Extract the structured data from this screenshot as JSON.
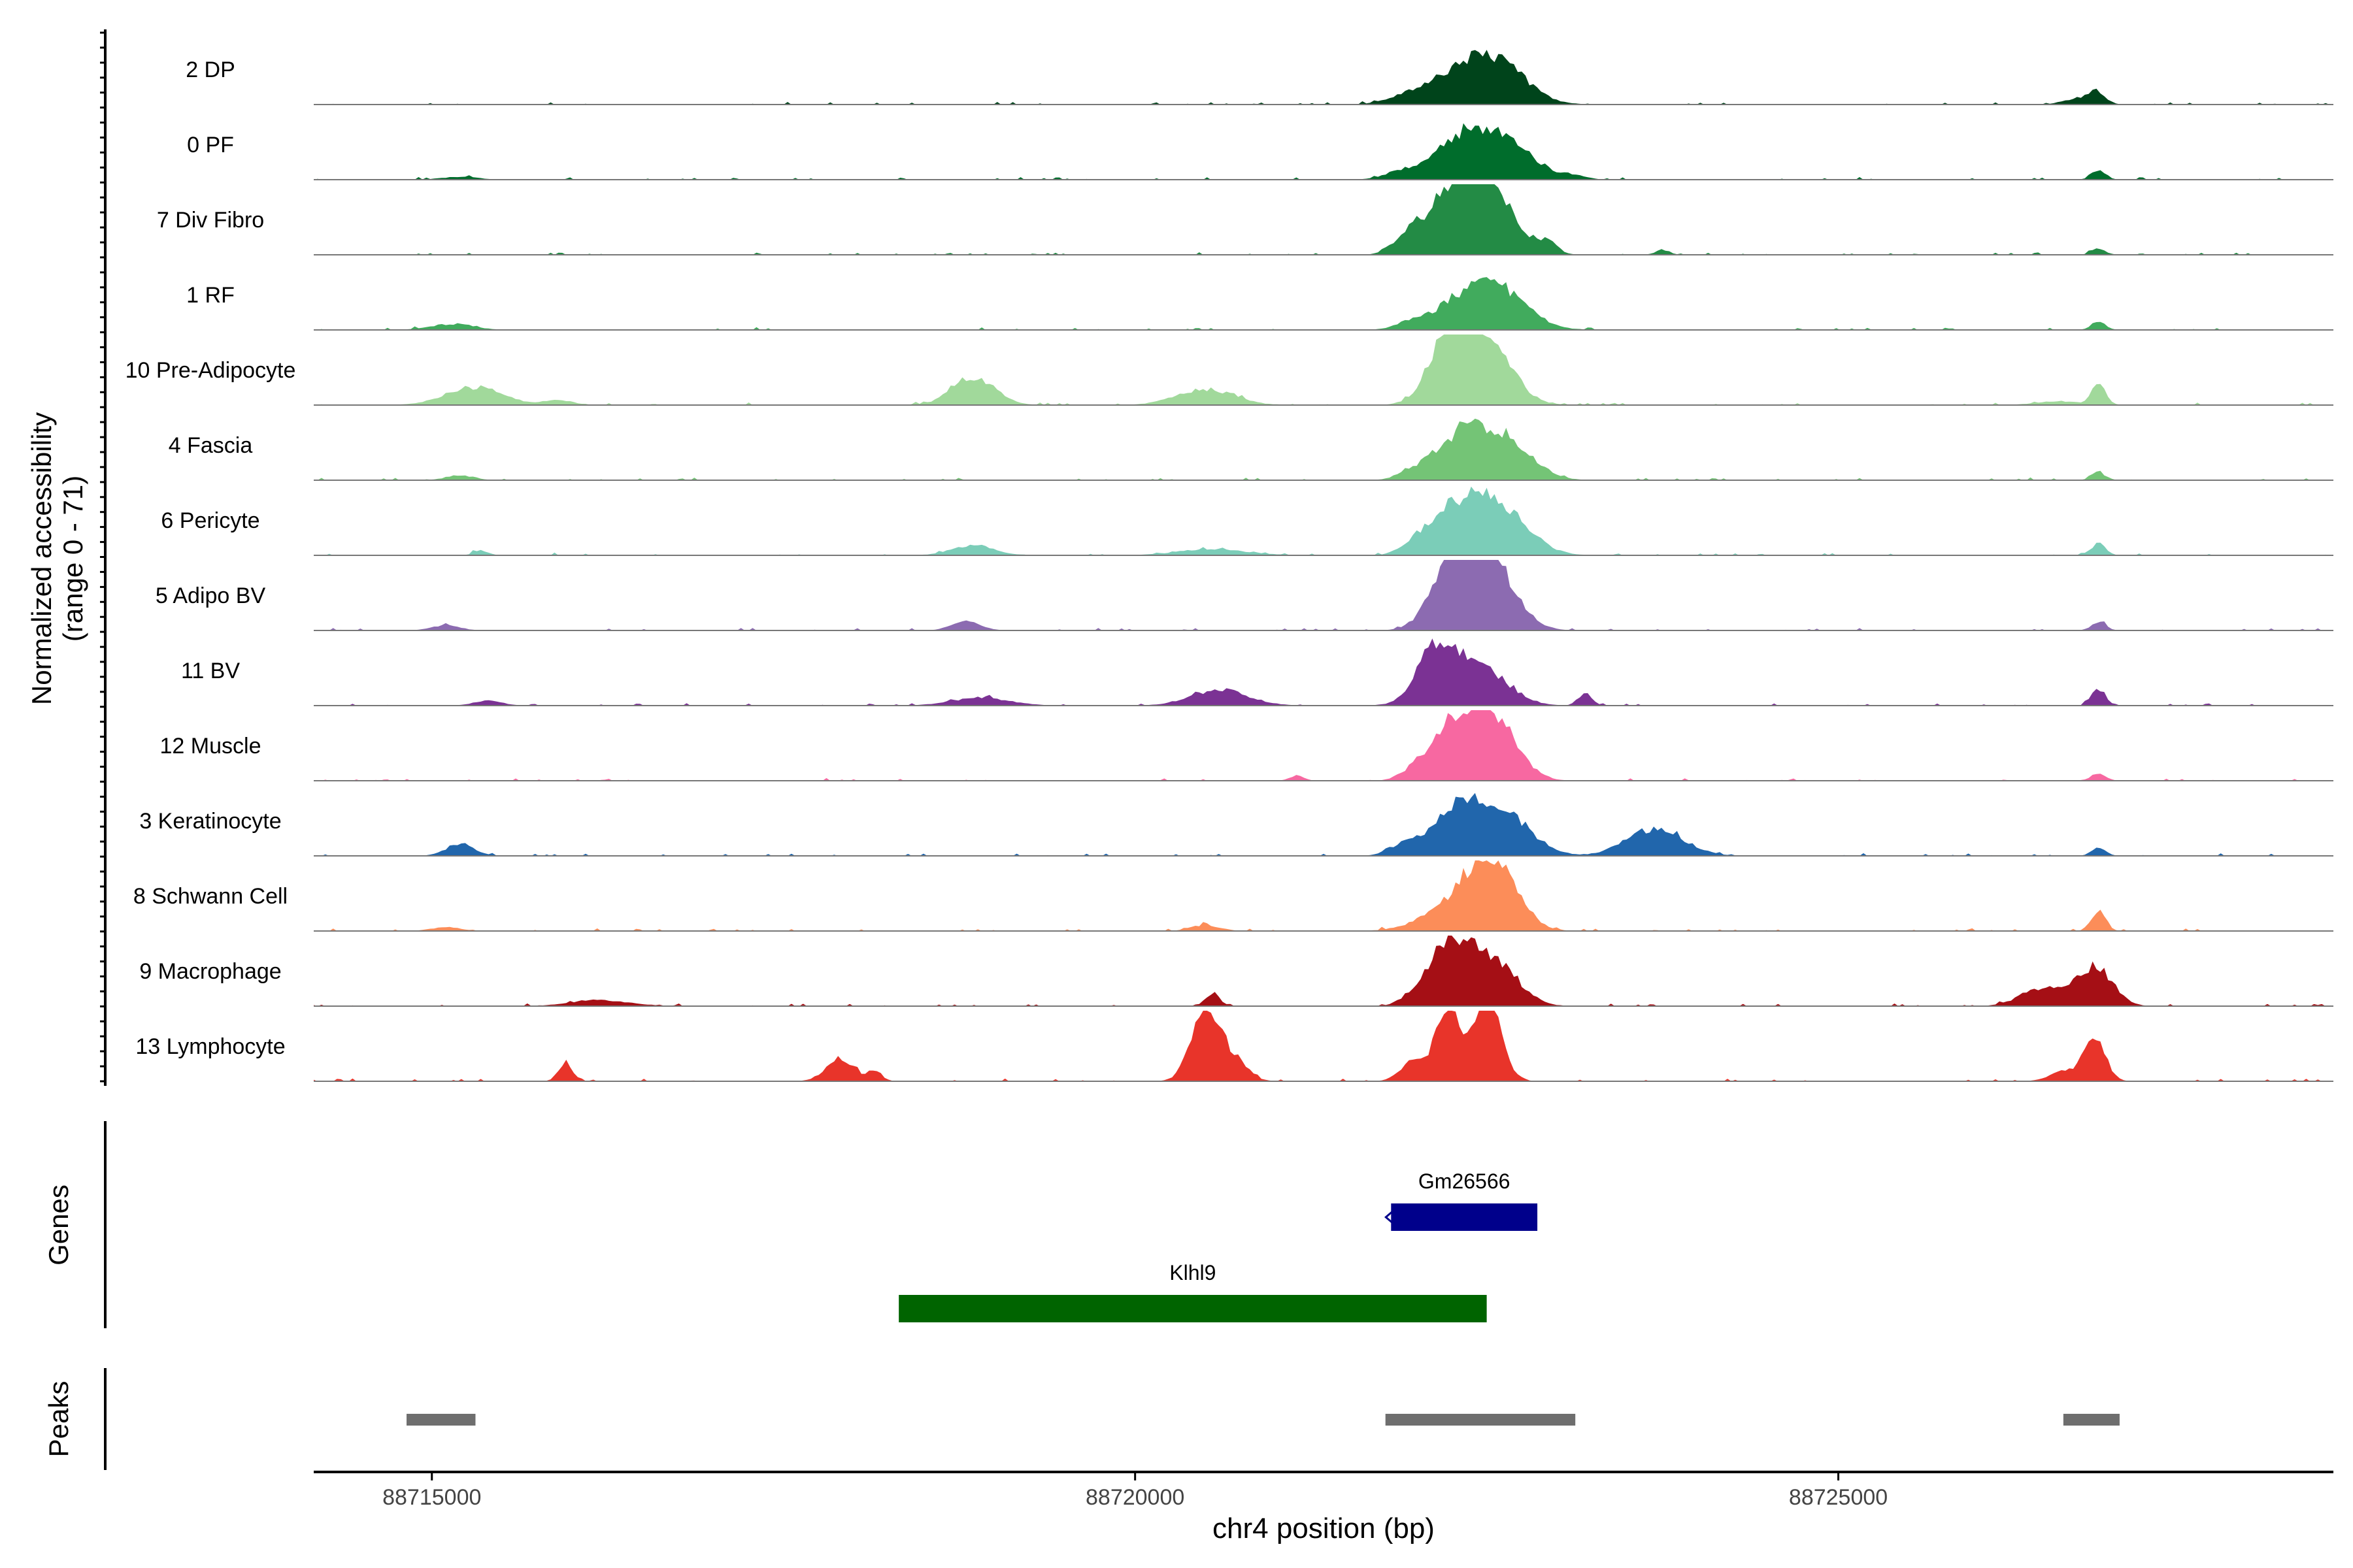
{
  "chart_data": {
    "type": "area",
    "title": "",
    "xlabel": "chr4 position (bp)",
    "ylabel_line1": "Normalized accessibility",
    "ylabel_line2": "(range 0 - 71)",
    "yrange": [
      0,
      71
    ],
    "xlim": [
      88714160,
      88728520
    ],
    "x_ticks": [
      88715000,
      88720000,
      88725000
    ],
    "x_tick_labels": [
      "88715000",
      "88720000",
      "88725000"
    ],
    "grid": false,
    "legend": "none",
    "track_labels": {
      "genes": "Genes",
      "peaks": "Peaks"
    },
    "series": [
      {
        "name": "2 DP",
        "color": "#00441B",
        "peaks": [
          [
            88721900,
            88722000,
            8,
            300
          ],
          [
            88722100,
            88722500,
            30,
            130
          ],
          [
            88722400,
            88722800,
            35,
            100
          ],
          [
            88726600,
            88726800,
            6,
            200
          ],
          [
            88726780,
            88726900,
            12,
            60
          ]
        ]
      },
      {
        "name": "0 PF",
        "color": "#006D2C",
        "peaks": [
          [
            88715100,
            88715300,
            3,
            250
          ],
          [
            88721800,
            88722000,
            8,
            250
          ],
          [
            88722100,
            88722450,
            34,
            140
          ],
          [
            88722400,
            88722800,
            42,
            130
          ],
          [
            88723000,
            88723200,
            4,
            150
          ],
          [
            88726800,
            88726900,
            10,
            60
          ]
        ]
      },
      {
        "name": "7 Div Fibro",
        "color": "#238B45",
        "peaks": [
          [
            88721900,
            88722000,
            15,
            200
          ],
          [
            88722100,
            88722500,
            65,
            90
          ],
          [
            88722350,
            88722700,
            48,
            110
          ],
          [
            88722850,
            88723000,
            12,
            100
          ],
          [
            88723700,
            88723800,
            5,
            60
          ],
          [
            88726800,
            88726900,
            6,
            50
          ]
        ]
      },
      {
        "name": "1 RF",
        "color": "#41AB5D",
        "peaks": [
          [
            88715000,
            88715300,
            6,
            200
          ],
          [
            88721900,
            88722000,
            6,
            200
          ],
          [
            88722100,
            88722500,
            24,
            120
          ],
          [
            88722400,
            88722800,
            37,
            120
          ],
          [
            88726800,
            88726900,
            9,
            60
          ]
        ]
      },
      {
        "name": "10 Pre-Adipocyte",
        "color": "#A1D99B",
        "peaks": [
          [
            88715100,
            88715500,
            18,
            160
          ],
          [
            88715800,
            88716000,
            5,
            80
          ],
          [
            88718700,
            88719000,
            28,
            100
          ],
          [
            88720300,
            88720700,
            16,
            150
          ],
          [
            88722100,
            88722400,
            72,
            100
          ],
          [
            88722350,
            88722700,
            50,
            110
          ],
          [
            88726800,
            88726900,
            22,
            70
          ],
          [
            88726400,
            88726700,
            4,
            100
          ]
        ]
      },
      {
        "name": "4 Fascia",
        "color": "#74C476",
        "peaks": [
          [
            88715100,
            88715300,
            5,
            200
          ],
          [
            88721900,
            88722000,
            5,
            200
          ],
          [
            88722100,
            88722450,
            36,
            130
          ],
          [
            88722400,
            88722800,
            44,
            120
          ],
          [
            88726800,
            88726900,
            8,
            60
          ]
        ]
      },
      {
        "name": "6 Pericyte",
        "color": "#7BCDB8",
        "peaks": [
          [
            88715300,
            88715400,
            5,
            60
          ],
          [
            88718700,
            88719000,
            10,
            150
          ],
          [
            88720300,
            88720800,
            6,
            180
          ],
          [
            88721900,
            88722100,
            10,
            200
          ],
          [
            88722100,
            88722450,
            43,
            130
          ],
          [
            88722400,
            88722800,
            46,
            120
          ],
          [
            88726800,
            88726900,
            12,
            70
          ]
        ]
      },
      {
        "name": "5 Adipo BV",
        "color": "#8C6BB1",
        "peaks": [
          [
            88715000,
            88715200,
            5,
            200
          ],
          [
            88718700,
            88718900,
            10,
            100
          ],
          [
            88722100,
            88722400,
            60,
            90
          ],
          [
            88722350,
            88722700,
            68,
            80
          ],
          [
            88726800,
            88726900,
            9,
            70
          ]
        ]
      },
      {
        "name": "11 BV",
        "color": "#7B3294",
        "peaks": [
          [
            88715300,
            88715500,
            5,
            60
          ],
          [
            88718700,
            88719100,
            8,
            100
          ],
          [
            88720400,
            88720800,
            16,
            110
          ],
          [
            88722000,
            88722200,
            20,
            150
          ],
          [
            88722050,
            88722400,
            48,
            80
          ],
          [
            88722350,
            88722700,
            26,
            130
          ],
          [
            88723150,
            88723250,
            12,
            50
          ],
          [
            88726800,
            88726900,
            17,
            40
          ]
        ]
      },
      {
        "name": "12 Muscle",
        "color": "#F768A1",
        "peaks": [
          [
            88721100,
            88721200,
            5,
            40
          ],
          [
            88721900,
            88722100,
            10,
            150
          ],
          [
            88722100,
            88722400,
            45,
            100
          ],
          [
            88722350,
            88722700,
            66,
            80
          ],
          [
            88726800,
            88726900,
            8,
            40
          ]
        ]
      },
      {
        "name": "3 Keratinocyte",
        "color": "#2166AC",
        "peaks": [
          [
            88715100,
            88715300,
            12,
            120
          ],
          [
            88721800,
            88722000,
            10,
            200
          ],
          [
            88722100,
            88722450,
            42,
            120
          ],
          [
            88722400,
            88722800,
            44,
            120
          ],
          [
            88723500,
            88723900,
            28,
            110
          ],
          [
            88726800,
            88726900,
            9,
            60
          ]
        ]
      },
      {
        "name": "8 Schwann Cell",
        "color": "#FC8D59",
        "peaks": [
          [
            88715000,
            88715200,
            4,
            200
          ],
          [
            88720400,
            88720600,
            6,
            150
          ],
          [
            88722000,
            88722400,
            18,
            200
          ],
          [
            88722350,
            88722700,
            75,
            100
          ],
          [
            88726800,
            88726900,
            20,
            60
          ]
        ]
      },
      {
        "name": "9 Macrophage",
        "color": "#A50F15",
        "peaks": [
          [
            88716000,
            88716400,
            6,
            200
          ],
          [
            88720500,
            88720600,
            13,
            60
          ],
          [
            88721900,
            88722100,
            12,
            120
          ],
          [
            88722100,
            88722350,
            58,
            90
          ],
          [
            88722350,
            88722700,
            50,
            110
          ],
          [
            88726300,
            88726600,
            18,
            140
          ],
          [
            88726700,
            88726950,
            40,
            110
          ]
        ]
      },
      {
        "name": "13 Lymphocyte",
        "color": "#E8342A",
        "peaks": [
          [
            88715900,
            88716000,
            20,
            40
          ],
          [
            88717800,
            88718000,
            22,
            80
          ],
          [
            88718100,
            88718200,
            10,
            60
          ],
          [
            88720400,
            88720600,
            75,
            60
          ],
          [
            88720600,
            88720800,
            20,
            80
          ],
          [
            88721900,
            88722100,
            22,
            100
          ],
          [
            88722150,
            88722300,
            80,
            70
          ],
          [
            88722400,
            88722600,
            85,
            80
          ],
          [
            88726500,
            88726700,
            10,
            100
          ],
          [
            88726750,
            88726900,
            42,
            60
          ]
        ]
      }
    ],
    "genes": [
      {
        "name": "Gm26566",
        "start": 88721820,
        "end": 88722860,
        "color": "#00008B",
        "strand": "-",
        "row": 0
      },
      {
        "name": "Klhl9",
        "start": 88718320,
        "end": 88722500,
        "color": "#006400",
        "strand": "-",
        "row": 1
      }
    ],
    "peak_regions": [
      [
        88714820,
        88715310
      ],
      [
        88721780,
        88723130
      ],
      [
        88726600,
        88727000
      ]
    ]
  }
}
